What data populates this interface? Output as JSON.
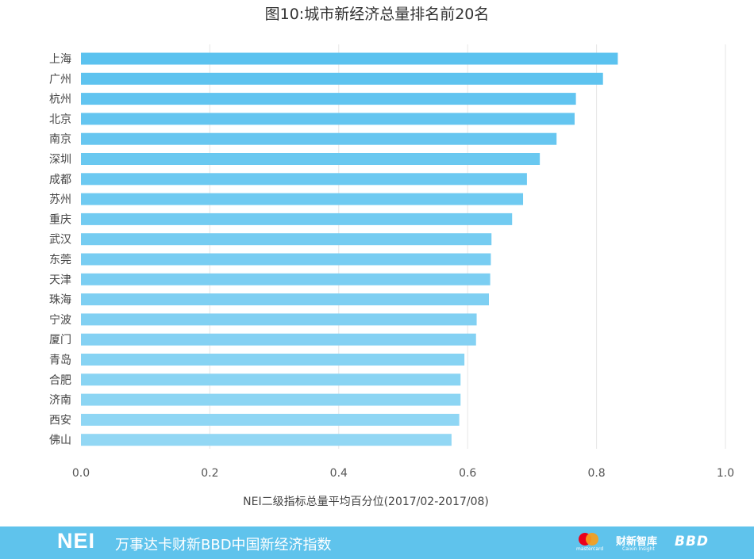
{
  "chart_data": {
    "type": "bar",
    "orientation": "horizontal",
    "title": "图10:城市新经济总量排名前20名",
    "xlabel": "NEI二级指标总量平均百分位(2017/02-2017/08)",
    "ylabel": "",
    "xlim": [
      0,
      1.0
    ],
    "xticks": [
      "0.0",
      "0.2",
      "0.4",
      "0.6",
      "0.8",
      "1.0"
    ],
    "grid": true,
    "categories": [
      "上海",
      "广州",
      "杭州",
      "北京",
      "南京",
      "深圳",
      "成都",
      "苏州",
      "重庆",
      "武汉",
      "东莞",
      "天津",
      "珠海",
      "宁波",
      "厦门",
      "青岛",
      "合肥",
      "济南",
      "西安",
      "佛山"
    ],
    "values": [
      0.833,
      0.81,
      0.768,
      0.766,
      0.738,
      0.712,
      0.692,
      0.686,
      0.669,
      0.637,
      0.636,
      0.635,
      0.633,
      0.614,
      0.613,
      0.595,
      0.589,
      0.589,
      0.587,
      0.575
    ],
    "colors": {
      "bar_top": "#5bc2ef",
      "bar_bottom": "#92d7f4",
      "grid": "#e6e6e6"
    }
  },
  "footer": {
    "brand": "NEI",
    "subtitle": "万事达卡财新BBD中国新经济指数",
    "logos": {
      "mastercard_text": "mastercard",
      "caixin_main": "财新智库",
      "caixin_sub": "Caixin Insight",
      "bbd": "BBD"
    },
    "colors": {
      "background": "#5fc3ec"
    }
  }
}
